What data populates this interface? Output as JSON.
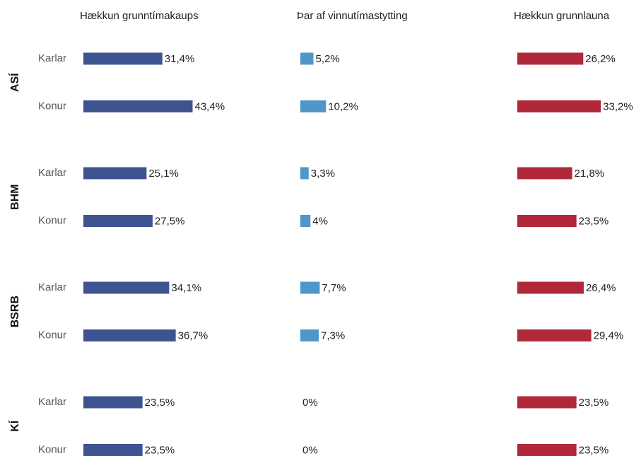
{
  "chart_data": {
    "type": "bar",
    "orientation": "horizontal",
    "groups": [
      "ASÍ",
      "BHM",
      "BSRB",
      "KÍ"
    ],
    "categories": [
      "Karlar",
      "Konur",
      "Karlar",
      "Konur",
      "Karlar",
      "Konur",
      "Karlar",
      "Konur"
    ],
    "series": [
      {
        "name": "Hækkun grunntímakaups",
        "color": "#3d5491",
        "values": [
          31.4,
          43.4,
          25.1,
          27.5,
          34.1,
          36.7,
          23.5,
          23.5
        ],
        "value_labels": [
          "31,4%",
          "43,4%",
          "25,1%",
          "27,5%",
          "34,1%",
          "36,7%",
          "23,5%",
          "23,5%"
        ]
      },
      {
        "name": "Þar af vinnutímastytting",
        "color": "#4f97c9",
        "values": [
          5.2,
          10.2,
          3.3,
          4,
          7.7,
          7.3,
          0,
          0
        ],
        "value_labels": [
          "5,2%",
          "10,2%",
          "3,3%",
          "4%",
          "7,7%",
          "7,3%",
          "0%",
          "0%"
        ]
      },
      {
        "name": "Hækkun grunnlauna",
        "color": "#b0283a",
        "values": [
          26.2,
          33.2,
          21.8,
          23.5,
          26.4,
          29.4,
          23.5,
          23.5
        ],
        "value_labels": [
          "26,2%",
          "33,2%",
          "21,8%",
          "23,5%",
          "26,4%",
          "29,4%",
          "23,5%",
          "23,5%"
        ]
      }
    ]
  }
}
